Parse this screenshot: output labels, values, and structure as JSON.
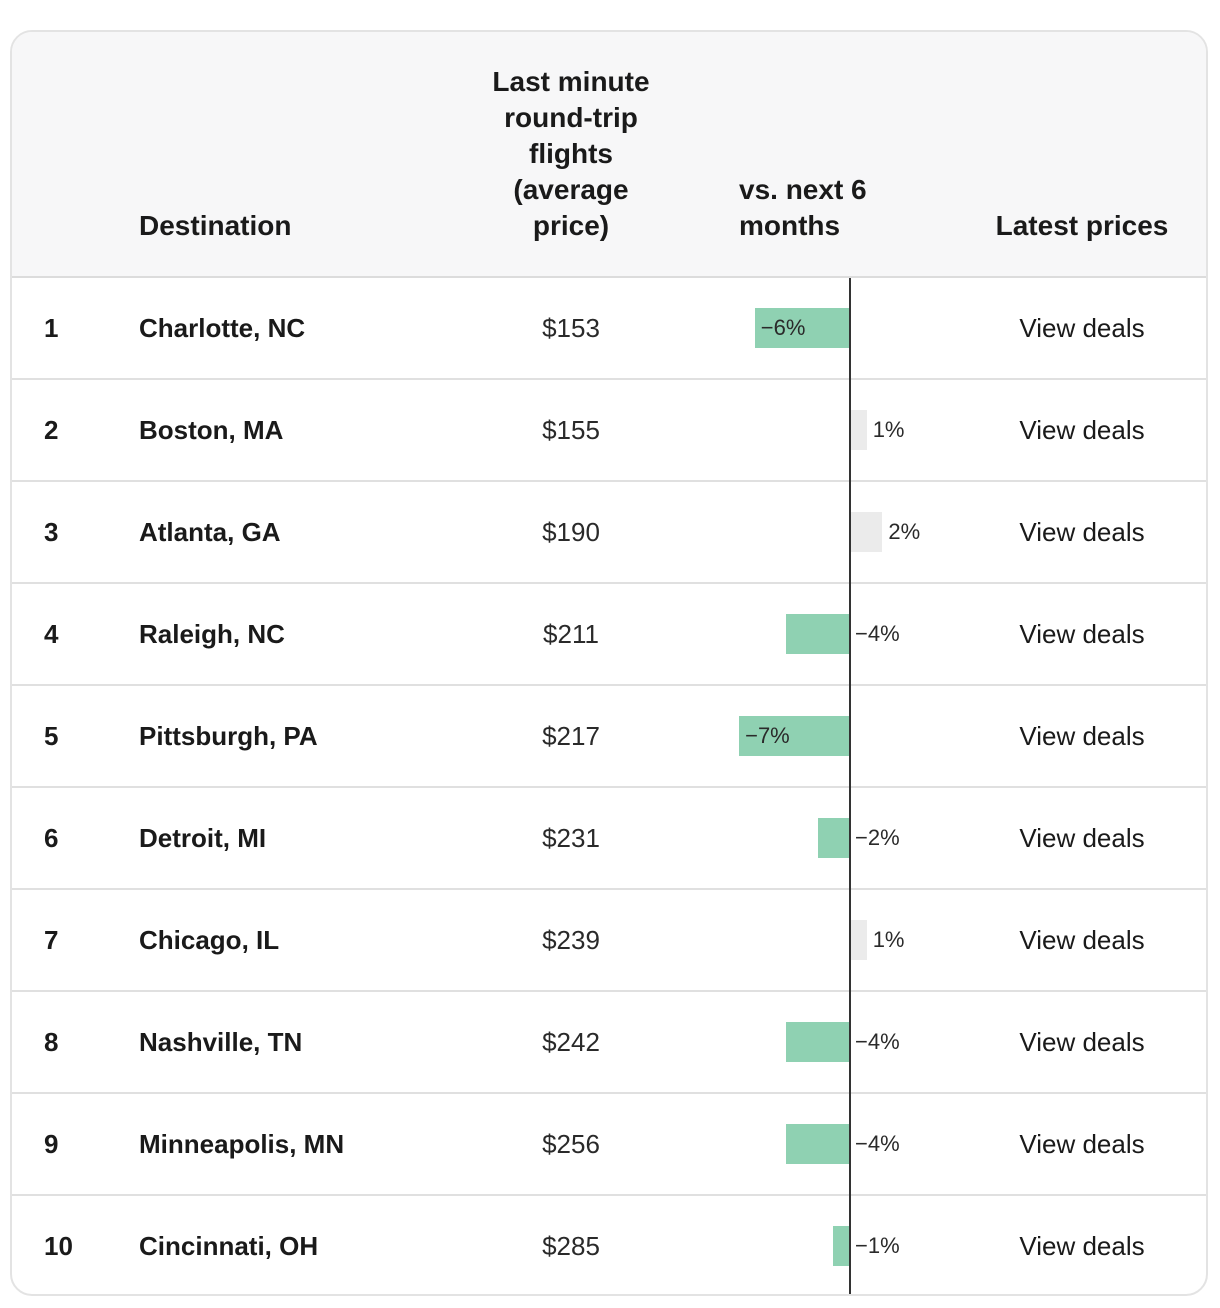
{
  "header": {
    "destination": "Destination",
    "price": "Last minute\nround-trip\nflights\n(average\nprice)",
    "vs": "vs. next 6\nmonths",
    "latest": "Latest prices"
  },
  "chart_data": {
    "type": "table",
    "columns": [
      "",
      "Destination",
      "Last minute round-trip flights (average price)",
      "vs. next 6 months",
      "Latest prices"
    ],
    "rows": [
      {
        "rank": "1",
        "destination": "Charlotte, NC",
        "price": "$153",
        "change": -6,
        "change_label": "−6%",
        "link": "View deals"
      },
      {
        "rank": "2",
        "destination": "Boston, MA",
        "price": "$155",
        "change": 1,
        "change_label": "1%",
        "link": "View deals"
      },
      {
        "rank": "3",
        "destination": "Atlanta, GA",
        "price": "$190",
        "change": 2,
        "change_label": "2%",
        "link": "View deals"
      },
      {
        "rank": "4",
        "destination": "Raleigh, NC",
        "price": "$211",
        "change": -4,
        "change_label": "−4%",
        "link": "View deals"
      },
      {
        "rank": "5",
        "destination": "Pittsburgh, PA",
        "price": "$217",
        "change": -7,
        "change_label": "−7%",
        "link": "View deals"
      },
      {
        "rank": "6",
        "destination": "Detroit, MI",
        "price": "$231",
        "change": -2,
        "change_label": "−2%",
        "link": "View deals"
      },
      {
        "rank": "7",
        "destination": "Chicago, IL",
        "price": "$239",
        "change": 1,
        "change_label": "1%",
        "link": "View deals"
      },
      {
        "rank": "8",
        "destination": "Nashville, TN",
        "price": "$242",
        "change": -4,
        "change_label": "−4%",
        "link": "View deals"
      },
      {
        "rank": "9",
        "destination": "Minneapolis, MN",
        "price": "$256",
        "change": -4,
        "change_label": "−4%",
        "link": "View deals"
      },
      {
        "rank": "10",
        "destination": "Cincinnati, OH",
        "price": "$285",
        "change": -1,
        "change_label": "−1%",
        "link": "View deals"
      }
    ],
    "colors": {
      "negative_bar": "#8fd1b2",
      "positive_bar": "#ebebeb",
      "axis": "#333333"
    }
  }
}
